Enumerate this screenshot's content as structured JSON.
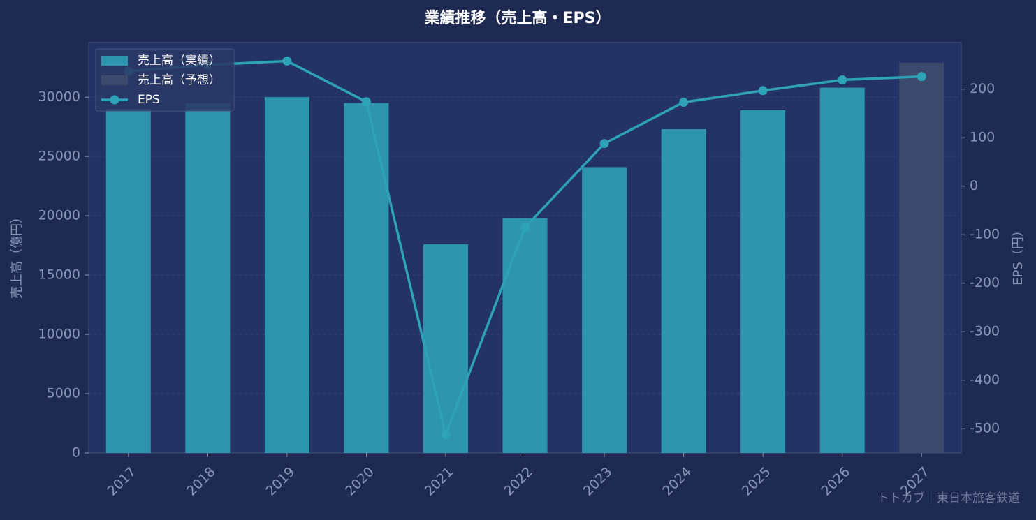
{
  "chart_data": {
    "type": "bar",
    "title": "業績推移（売上高・EPS）",
    "y_label": "売上高（億円）",
    "y2_label": "EPS（円）",
    "footer": "トトカブ｜東日本旅客鉄道",
    "categories": [
      "2017",
      "2018",
      "2019",
      "2020",
      "2021",
      "2022",
      "2023",
      "2024",
      "2025",
      "2026",
      "2027"
    ],
    "series": [
      {
        "name": "売上高（実績）",
        "type": "bar",
        "color": "#2e95ae",
        "values": [
          29000,
          29500,
          30000,
          29500,
          17600,
          19800,
          24100,
          27300,
          28900,
          30800,
          null
        ]
      },
      {
        "name": "売上高（予想）",
        "type": "bar",
        "color": "#3b4a6a",
        "values": [
          null,
          null,
          null,
          null,
          null,
          null,
          null,
          null,
          null,
          null,
          32900
        ]
      },
      {
        "name": "EPS",
        "type": "line",
        "axis": "y2",
        "color": "#2ea3b8",
        "values": [
          237,
          250,
          258,
          174,
          -512,
          -85,
          88,
          173,
          197,
          219,
          226
        ]
      }
    ],
    "ylim": [
      0,
      34600
    ],
    "yticks": [
      0,
      5000,
      10000,
      15000,
      20000,
      25000,
      30000
    ],
    "y2lim": [
      -550,
      296
    ],
    "y2ticks": [
      -500,
      -400,
      -300,
      -200,
      -100,
      0,
      100,
      200
    ],
    "grid": true,
    "legend": "upper-left"
  }
}
